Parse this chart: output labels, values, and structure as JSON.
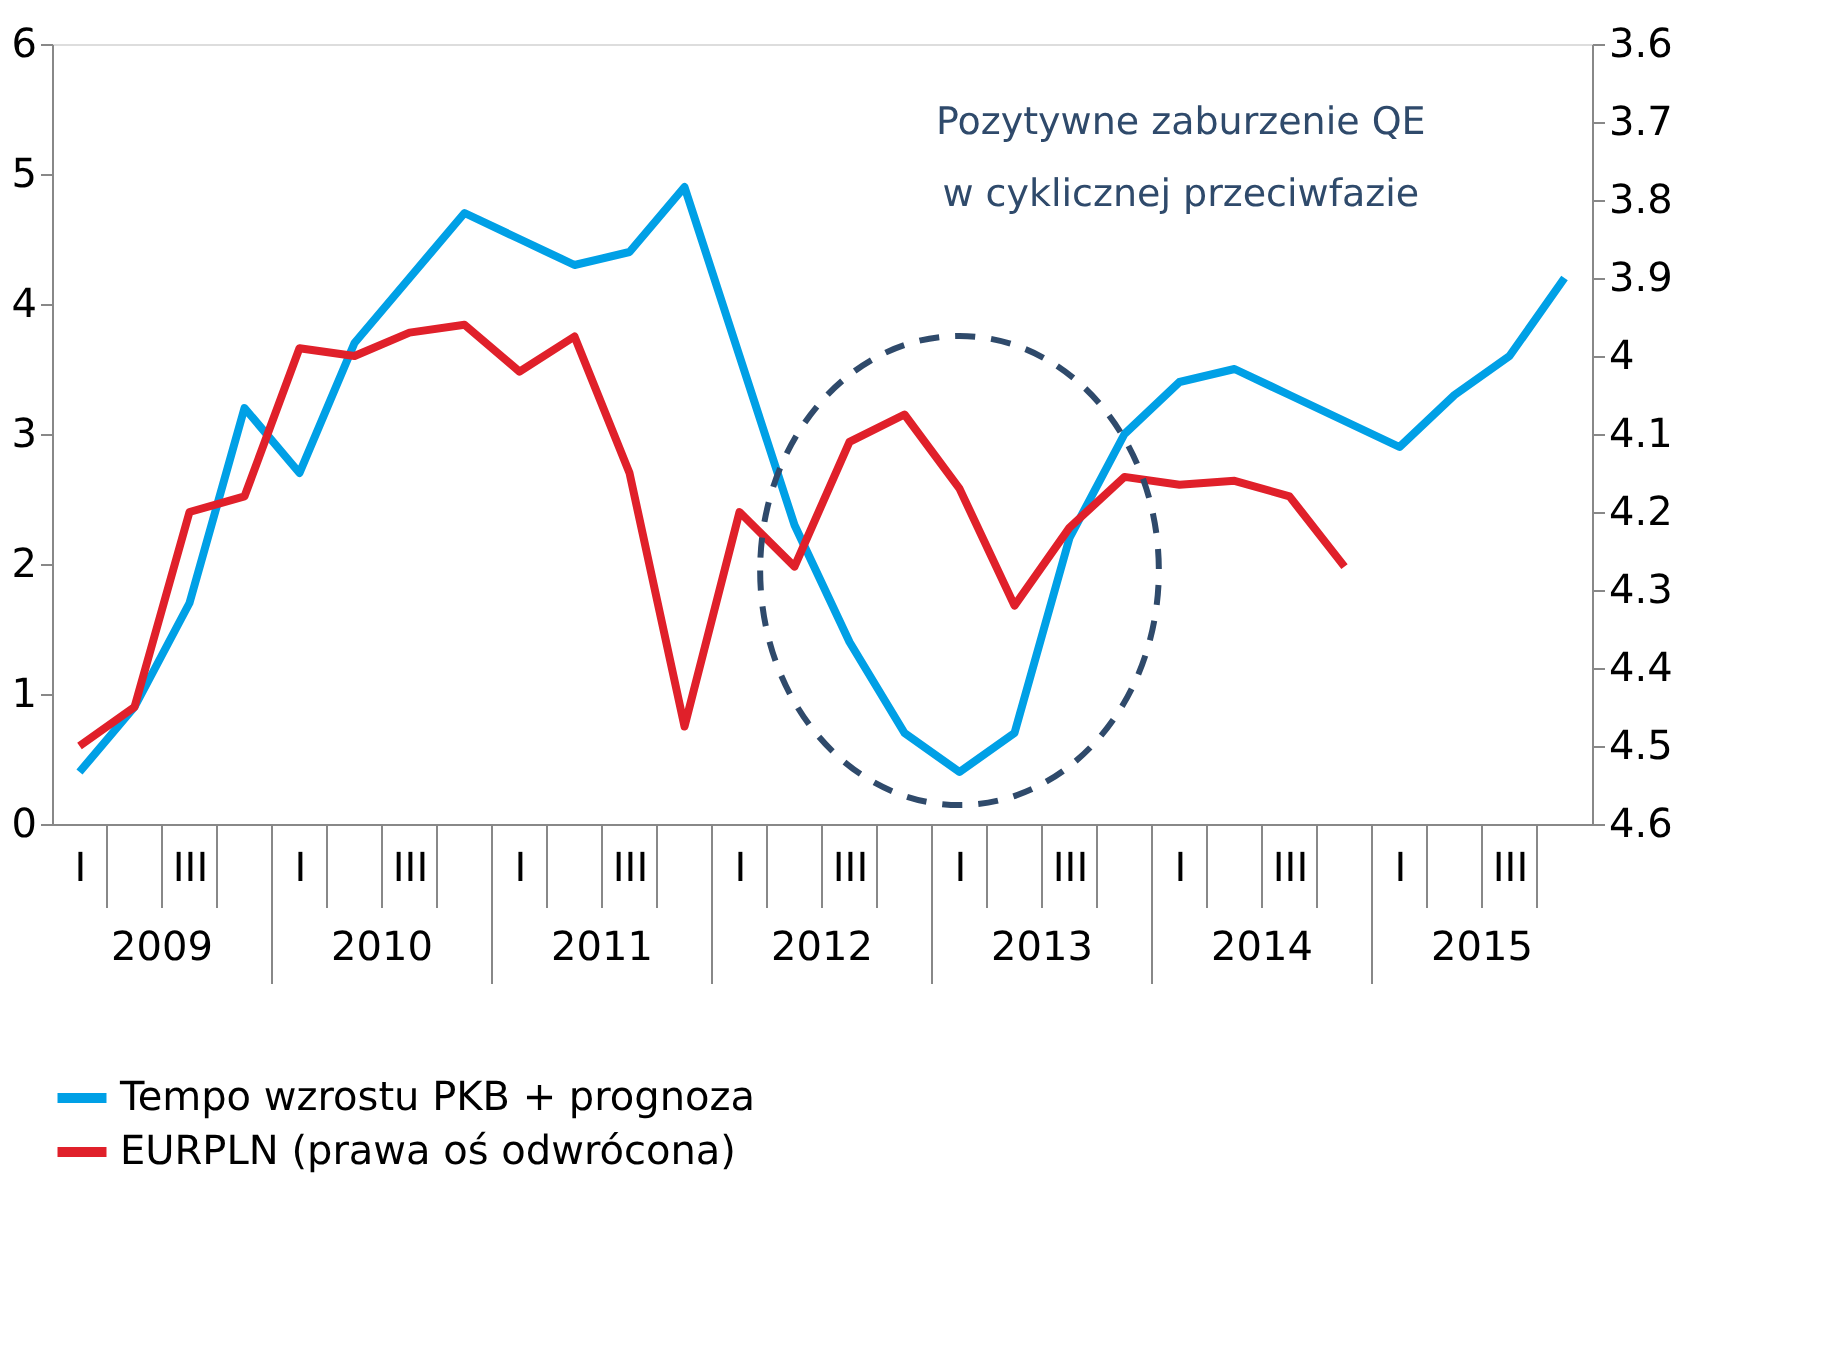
{
  "chart_data": {
    "type": "line",
    "categories": [
      "I",
      null,
      "III",
      null,
      "I",
      null,
      "III",
      null,
      "I",
      null,
      "III",
      null,
      "I",
      null,
      "III",
      null,
      "I",
      null,
      "III",
      null,
      "I",
      null,
      "III",
      null,
      "I",
      null,
      "III",
      null
    ],
    "series": [
      {
        "name": "Tempo wzrostu PKB + prognoza",
        "color": "#00a0e6",
        "values": [
          0.4,
          0.9,
          1.7,
          3.2,
          2.7,
          3.7,
          4.2,
          4.7,
          4.5,
          4.3,
          4.4,
          4.9,
          3.6,
          2.3,
          1.4,
          0.7,
          0.4,
          0.7,
          2.2,
          3.0,
          3.4,
          3.5,
          3.3,
          3.1,
          2.9,
          3.3,
          3.6,
          4.2
        ]
      },
      {
        "name": "EURPLN (prawa oś odwrócona)",
        "color": "#e0202a",
        "axis": "y2",
        "values": [
          4.5,
          4.45,
          4.2,
          4.18,
          3.99,
          4.0,
          3.97,
          3.96,
          4.02,
          3.975,
          4.15,
          4.475,
          4.2,
          4.27,
          4.11,
          4.075,
          4.17,
          4.32,
          4.22,
          4.155,
          4.165,
          4.16,
          4.18,
          4.27,
          null,
          null,
          null,
          null
        ]
      }
    ],
    "ylim": [
      0,
      6
    ],
    "yticks": [
      0,
      1,
      2,
      3,
      4,
      5,
      6
    ],
    "y2lim": [
      4.6,
      3.6
    ],
    "y2ticks": [
      3.6,
      3.7,
      3.8,
      3.9,
      4,
      4.1,
      4.2,
      4.3,
      4.4,
      4.5,
      4.6
    ],
    "annotations": [
      "Pozytywne zaburzenie QE w cyklicznej przeciwfazie",
      "2009",
      "2010",
      "2011",
      "2012",
      "2013",
      "2014",
      "2015"
    ],
    "grid": false,
    "legend": "bottom",
    "marker": "none",
    "line_style": "solid"
  }
}
